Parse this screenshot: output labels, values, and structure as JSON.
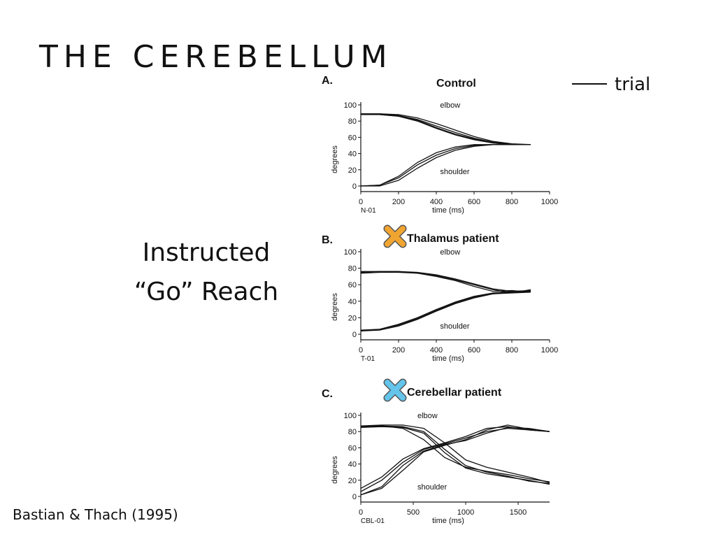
{
  "slide": {
    "title": "THE CEREBELLUM",
    "legend_label": "trial",
    "instructed_line1": "Instructed",
    "instructed_line2": "“Go” Reach",
    "citation": "Bastian & Thach (1995)"
  },
  "colors": {
    "thalamus_x": "#f0a531",
    "cerebellar_x": "#64c4ea",
    "line": "#111111"
  },
  "chart_data": [
    {
      "type": "line",
      "panel": "A.",
      "title": "Control",
      "subject": "N-01",
      "xlabel": "time (ms)",
      "ylabel": "degrees",
      "xlim": [
        0,
        1000
      ],
      "ylim": [
        0,
        100
      ],
      "xticks": [
        0,
        200,
        400,
        600,
        800,
        1000
      ],
      "yticks": [
        0,
        20,
        40,
        60,
        80,
        100
      ],
      "annotations": [
        "elbow",
        "shoulder"
      ],
      "series": [
        {
          "group": "elbow",
          "x": [
            0,
            100,
            200,
            300,
            400,
            500,
            600,
            700,
            800,
            900
          ],
          "y": [
            88,
            88,
            86,
            80,
            71,
            63,
            57,
            53,
            51,
            51
          ]
        },
        {
          "group": "elbow",
          "x": [
            0,
            100,
            200,
            300,
            400,
            500,
            600,
            700,
            800,
            900
          ],
          "y": [
            89,
            89,
            87,
            82,
            74,
            66,
            59,
            54,
            51,
            51
          ]
        },
        {
          "group": "elbow",
          "x": [
            0,
            100,
            200,
            300,
            400,
            500,
            600,
            700,
            800,
            900
          ],
          "y": [
            88,
            88,
            86,
            81,
            72,
            64,
            58,
            53,
            51,
            51
          ]
        },
        {
          "group": "elbow",
          "x": [
            0,
            100,
            200,
            300,
            400,
            500,
            600,
            700,
            800,
            900
          ],
          "y": [
            89,
            89,
            88,
            84,
            77,
            69,
            61,
            55,
            52,
            51
          ]
        },
        {
          "group": "shoulder",
          "x": [
            0,
            100,
            200,
            300,
            400,
            500,
            600,
            700,
            800,
            900
          ],
          "y": [
            0,
            1,
            10,
            26,
            38,
            46,
            50,
            51,
            51,
            51
          ]
        },
        {
          "group": "shoulder",
          "x": [
            0,
            100,
            200,
            300,
            400,
            500,
            600,
            700,
            800,
            900
          ],
          "y": [
            0,
            0,
            7,
            22,
            35,
            44,
            49,
            51,
            51,
            51
          ]
        },
        {
          "group": "shoulder",
          "x": [
            0,
            100,
            200,
            300,
            400,
            500,
            600,
            700,
            800,
            900
          ],
          "y": [
            0,
            1,
            12,
            29,
            41,
            48,
            51,
            51,
            51,
            51
          ]
        }
      ]
    },
    {
      "type": "line",
      "panel": "B.",
      "title": "Thalamus patient",
      "subject": "T-01",
      "xlabel": "time (ms)",
      "ylabel": "degrees",
      "xlim": [
        0,
        1000
      ],
      "ylim": [
        0,
        100
      ],
      "xticks": [
        0,
        200,
        400,
        600,
        800,
        1000
      ],
      "yticks": [
        0,
        20,
        40,
        60,
        80,
        100
      ],
      "annotations": [
        "elbow",
        "shoulder"
      ],
      "series": [
        {
          "group": "elbow",
          "x": [
            0,
            100,
            200,
            300,
            400,
            500,
            600,
            700,
            800,
            900
          ],
          "y": [
            76,
            76,
            76,
            75,
            72,
            67,
            61,
            55,
            52,
            52
          ]
        },
        {
          "group": "elbow",
          "x": [
            0,
            100,
            200,
            300,
            400,
            500,
            600,
            700,
            800,
            900
          ],
          "y": [
            74,
            75,
            75,
            74,
            71,
            66,
            60,
            54,
            50,
            54
          ]
        },
        {
          "group": "elbow",
          "x": [
            0,
            100,
            200,
            300,
            400,
            500,
            600,
            700,
            800,
            900
          ],
          "y": [
            75,
            76,
            76,
            74,
            70,
            65,
            58,
            52,
            53,
            51
          ]
        },
        {
          "group": "shoulder",
          "x": [
            0,
            100,
            200,
            300,
            400,
            500,
            600,
            700,
            800,
            900
          ],
          "y": [
            4,
            5,
            10,
            18,
            28,
            37,
            44,
            49,
            51,
            51
          ]
        },
        {
          "group": "shoulder",
          "x": [
            0,
            100,
            200,
            300,
            400,
            500,
            600,
            700,
            800,
            900
          ],
          "y": [
            4,
            6,
            12,
            20,
            30,
            39,
            46,
            50,
            52,
            53
          ]
        },
        {
          "group": "shoulder",
          "x": [
            0,
            100,
            200,
            300,
            400,
            500,
            600,
            700,
            800,
            900
          ],
          "y": [
            5,
            6,
            11,
            19,
            29,
            38,
            45,
            49,
            50,
            51
          ]
        }
      ]
    },
    {
      "type": "line",
      "panel": "C.",
      "title": "Cerebellar patient",
      "subject": "CBL-01",
      "xlabel": "time (ms)",
      "ylabel": "degrees",
      "xlim": [
        0,
        1800
      ],
      "ylim": [
        0,
        100
      ],
      "xticks": [
        0,
        500,
        1000,
        1500
      ],
      "yticks": [
        0,
        20,
        40,
        60,
        80,
        100
      ],
      "annotations": [
        "elbow",
        "shoulder"
      ],
      "series": [
        {
          "group": "elbow",
          "x": [
            0,
            200,
            400,
            600,
            800,
            1000,
            1200,
            1400,
            1600,
            1800
          ],
          "y": [
            87,
            87,
            86,
            80,
            58,
            38,
            30,
            25,
            19,
            16
          ]
        },
        {
          "group": "elbow",
          "x": [
            0,
            200,
            400,
            600,
            800,
            1000,
            1200,
            1400,
            1600,
            1800
          ],
          "y": [
            86,
            87,
            84,
            70,
            48,
            36,
            31,
            27,
            22,
            18
          ]
        },
        {
          "group": "elbow",
          "x": [
            0,
            200,
            400,
            600,
            800,
            1000,
            1200,
            1400,
            1600,
            1800
          ],
          "y": [
            87,
            88,
            88,
            84,
            66,
            45,
            36,
            30,
            24,
            17
          ]
        },
        {
          "group": "elbow",
          "x": [
            0,
            200,
            400,
            600,
            800,
            1000,
            1200,
            1400,
            1600,
            1800
          ],
          "y": [
            85,
            86,
            85,
            78,
            54,
            35,
            28,
            24,
            20,
            15
          ]
        },
        {
          "group": "shoulder",
          "x": [
            0,
            200,
            400,
            600,
            800,
            1000,
            1200,
            1400,
            1600,
            1800
          ],
          "y": [
            2,
            10,
            32,
            55,
            63,
            70,
            82,
            88,
            83,
            80
          ]
        },
        {
          "group": "shoulder",
          "x": [
            0,
            200,
            400,
            600,
            800,
            1000,
            1200,
            1400,
            1600,
            1800
          ],
          "y": [
            6,
            20,
            42,
            58,
            65,
            72,
            80,
            84,
            82,
            80
          ]
        },
        {
          "group": "shoulder",
          "x": [
            0,
            200,
            400,
            600,
            800,
            1000,
            1200,
            1400,
            1600,
            1800
          ],
          "y": [
            10,
            24,
            46,
            59,
            66,
            74,
            84,
            86,
            82,
            80
          ]
        },
        {
          "group": "shoulder",
          "x": [
            0,
            200,
            400,
            600,
            800,
            1000,
            1200,
            1400,
            1600,
            1800
          ],
          "y": [
            2,
            12,
            38,
            56,
            64,
            69,
            78,
            85,
            84,
            80
          ]
        }
      ]
    }
  ]
}
